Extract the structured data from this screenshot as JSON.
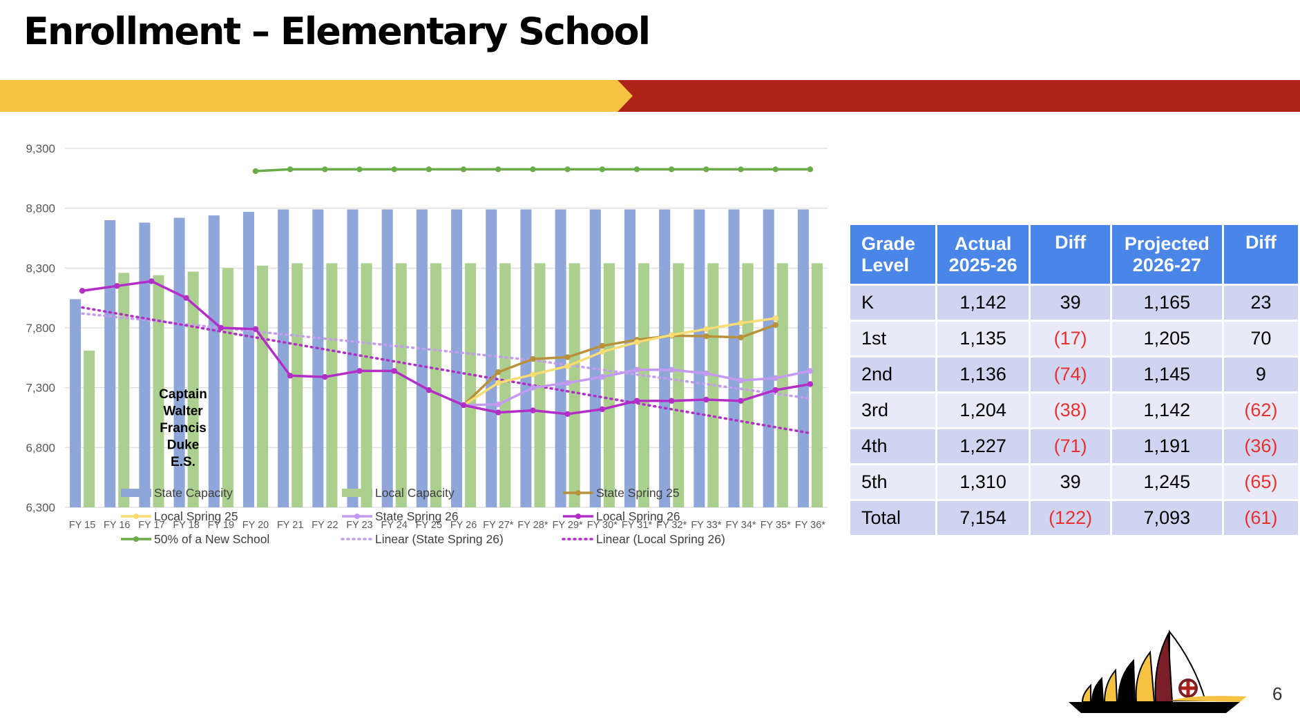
{
  "title": "Enrollment – Elementary School",
  "page_number": "6",
  "colors": {
    "banner_yellow": "#f6c241",
    "banner_red": "#ad2317",
    "table_header": "#4a86e8",
    "negative_text": "#e8302f"
  },
  "chart_data": {
    "type": "bar+line",
    "categories": [
      "FY 15",
      "FY 16",
      "FY 17",
      "FY 18",
      "FY 19",
      "FY 20",
      "FY 21",
      "FY 22",
      "FY 23",
      "FY 24",
      "FY 25",
      "FY 26",
      "FY 27*",
      "FY 28*",
      "FY 29*",
      "FY 30*",
      "FY 31*",
      "FY 32*",
      "FY 33*",
      "FY 34*",
      "FY 35*",
      "FY 36*"
    ],
    "ylim": [
      6300,
      9300
    ],
    "y_ticks": [
      "6,300",
      "6,800",
      "7,300",
      "7,800",
      "8,300",
      "8,800",
      "9,300"
    ],
    "grid": true,
    "legend_position": "bottom",
    "annotation": [
      "Captain",
      "Walter",
      "Francis",
      "Duke",
      "E.S."
    ],
    "series": [
      {
        "name": "State Capacity",
        "kind": "bar",
        "color": "#8fa6d9",
        "values": [
          8040,
          8700,
          8680,
          8720,
          8740,
          8770,
          8790,
          8790,
          8790,
          8790,
          8790,
          8790,
          8790,
          8790,
          8790,
          8790,
          8790,
          8790,
          8790,
          8790,
          8790,
          8790
        ]
      },
      {
        "name": "Local Capacity",
        "kind": "bar",
        "color": "#aacf8e",
        "values": [
          7610,
          8260,
          8240,
          8270,
          8300,
          8320,
          8340,
          8340,
          8340,
          8340,
          8340,
          8340,
          8340,
          8340,
          8340,
          8340,
          8340,
          8340,
          8340,
          8340,
          8340,
          8340
        ]
      },
      {
        "name": "State Spring 25",
        "kind": "line",
        "marker": true,
        "color": "#b8913a",
        "values": [
          null,
          null,
          null,
          null,
          null,
          null,
          null,
          null,
          null,
          null,
          null,
          7154,
          7430,
          7540,
          7555,
          7650,
          7700,
          7735,
          7730,
          7720,
          7825,
          null
        ]
      },
      {
        "name": "Local Spring 25",
        "kind": "line",
        "marker": true,
        "color": "#f8dc74",
        "values": [
          null,
          null,
          null,
          null,
          null,
          null,
          null,
          null,
          null,
          null,
          null,
          7154,
          7340,
          7410,
          7480,
          7600,
          7680,
          7740,
          7790,
          7840,
          7880,
          null
        ]
      },
      {
        "name": "State Spring 26",
        "kind": "line",
        "marker": true,
        "color": "#c499f2",
        "values": [
          null,
          null,
          null,
          null,
          null,
          null,
          null,
          null,
          null,
          null,
          null,
          7154,
          7160,
          7300,
          7340,
          7390,
          7450,
          7450,
          7420,
          7360,
          7380,
          7440
        ]
      },
      {
        "name": "Local Spring 26",
        "kind": "line",
        "marker": true,
        "color": "#b22ec7",
        "values": [
          8110,
          8150,
          8190,
          8050,
          7800,
          7790,
          7400,
          7390,
          7440,
          7440,
          7280,
          7154,
          7093,
          7110,
          7080,
          7120,
          7190,
          7190,
          7200,
          7190,
          7280,
          7330
        ]
      },
      {
        "name": "50% of a New School",
        "kind": "line",
        "marker": true,
        "color": "#6aac49",
        "values": [
          null,
          null,
          null,
          null,
          null,
          9110,
          9125,
          9125,
          9125,
          9125,
          9125,
          9125,
          9125,
          9125,
          9125,
          9125,
          9125,
          9125,
          9125,
          9125,
          9125,
          9125
        ]
      },
      {
        "name": "Linear (State Spring 26)",
        "kind": "trend",
        "color": "#c49cf0",
        "values": [
          7920,
          7890,
          7860,
          7830,
          7800,
          7770,
          7740,
          7710,
          7680,
          7650,
          7620,
          7590,
          7560,
          7530,
          7490,
          7450,
          7410,
          7370,
          7330,
          7290,
          7250,
          7210
        ]
      },
      {
        "name": "Linear (Local Spring 26)",
        "kind": "trend",
        "color": "#b22ec7",
        "values": [
          7970,
          7920,
          7870,
          7820,
          7770,
          7720,
          7670,
          7620,
          7570,
          7520,
          7470,
          7420,
          7370,
          7320,
          7270,
          7220,
          7170,
          7120,
          7070,
          7020,
          6970,
          6920
        ]
      }
    ]
  },
  "table": {
    "headers": [
      [
        "Grade",
        "Level"
      ],
      [
        "Actual",
        "2025-26"
      ],
      [
        "Diff"
      ],
      [
        "Projected",
        "2026-27"
      ],
      [
        "Diff"
      ]
    ],
    "rows": [
      [
        "K",
        "1,142",
        "39",
        "1,165",
        "23"
      ],
      [
        "1st",
        "1,135",
        "(17)",
        "1,205",
        "70"
      ],
      [
        "2nd",
        "1,136",
        "(74)",
        "1,145",
        "9"
      ],
      [
        "3rd",
        "1,204",
        "(38)",
        "1,142",
        "(62)"
      ],
      [
        "4th",
        "1,227",
        "(71)",
        "1,191",
        "(36)"
      ],
      [
        "5th",
        "1,310",
        "39",
        "1,245",
        "(65)"
      ],
      [
        "Total",
        "7,154",
        "(122)",
        "7,093",
        "(61)"
      ]
    ]
  }
}
